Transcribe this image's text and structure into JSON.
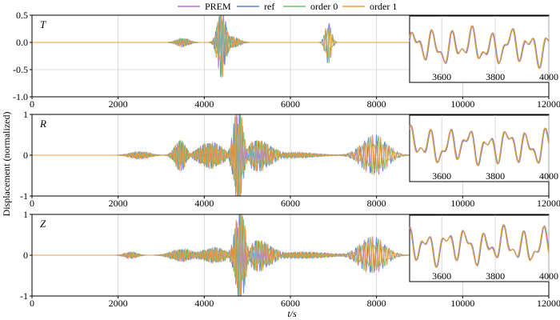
{
  "legend": [
    {
      "name": "PREM",
      "color": "#b06fd8"
    },
    {
      "name": "ref",
      "color": "#5a7fd6"
    },
    {
      "name": "order 0",
      "color": "#6cbf6c"
    },
    {
      "name": "order 1",
      "color": "#f39a3c"
    }
  ],
  "ylabel": "Displacement (normalized)",
  "xlabel": "t/s",
  "chart_data": [
    {
      "type": "line",
      "panel": "T",
      "xlim": [
        0,
        12000
      ],
      "ylim": [
        -1.0,
        0.5
      ],
      "xticks": [
        0,
        2000,
        4000,
        6000,
        8000,
        10000,
        12000
      ],
      "yticks": [
        -1.0,
        -0.5,
        0.0,
        0.5
      ],
      "ytick_labels": [
        "-1.0",
        "-0.5",
        "0.0",
        "0.5"
      ],
      "grid": true,
      "wave_packets": [
        {
          "t": 3500,
          "width": 200,
          "amp": 0.06,
          "period": 60
        },
        {
          "t": 4400,
          "width": 130,
          "amp": 0.5,
          "period": 75
        },
        {
          "t": 4650,
          "width": 220,
          "amp": 0.08,
          "period": 60
        },
        {
          "t": 6880,
          "width": 100,
          "amp": 0.3,
          "period": 80
        }
      ],
      "inset": {
        "xlim": [
          3480,
          4000
        ],
        "xticks": [
          3600,
          3800,
          4000
        ]
      }
    },
    {
      "type": "line",
      "panel": "R",
      "xlim": [
        0,
        12000
      ],
      "ylim": [
        -1,
        1
      ],
      "xticks": [
        0,
        2000,
        4000,
        6000,
        8000,
        10000,
        12000
      ],
      "yticks": [
        -1,
        0,
        1
      ],
      "ytick_labels": [
        "-1",
        "0",
        "1"
      ],
      "grid": true,
      "wave_packets": [
        {
          "t": 2500,
          "width": 300,
          "amp": 0.07,
          "period": 50
        },
        {
          "t": 3450,
          "width": 180,
          "amp": 0.3,
          "period": 60
        },
        {
          "t": 4150,
          "width": 380,
          "amp": 0.25,
          "period": 55
        },
        {
          "t": 4800,
          "width": 150,
          "amp": 0.95,
          "period": 65
        },
        {
          "t": 5250,
          "width": 400,
          "amp": 0.3,
          "period": 70
        },
        {
          "t": 6100,
          "width": 700,
          "amp": 0.05,
          "period": 50
        },
        {
          "t": 7950,
          "width": 400,
          "amp": 0.38,
          "period": 95
        }
      ],
      "inset": {
        "xlim": [
          3480,
          4000
        ],
        "xticks": [
          3600,
          3800,
          4000
        ]
      }
    },
    {
      "type": "line",
      "panel": "Z",
      "xlim": [
        0,
        12000
      ],
      "ylim": [
        -1,
        1
      ],
      "xticks": [
        0,
        2000,
        4000,
        6000,
        8000,
        10000,
        12000
      ],
      "yticks": [
        -1,
        0,
        1
      ],
      "ytick_labels": [
        "-1",
        "0",
        "1"
      ],
      "grid": true,
      "wave_packets": [
        {
          "t": 2300,
          "width": 200,
          "amp": 0.06,
          "period": 50
        },
        {
          "t": 3500,
          "width": 350,
          "amp": 0.12,
          "period": 60
        },
        {
          "t": 4250,
          "width": 350,
          "amp": 0.15,
          "period": 55
        },
        {
          "t": 4850,
          "width": 160,
          "amp": 0.95,
          "period": 65
        },
        {
          "t": 5250,
          "width": 400,
          "amp": 0.3,
          "period": 70
        },
        {
          "t": 6300,
          "width": 800,
          "amp": 0.06,
          "period": 50
        },
        {
          "t": 7900,
          "width": 400,
          "amp": 0.35,
          "period": 95
        }
      ],
      "inset": {
        "xlim": [
          3480,
          4000
        ],
        "xticks": [
          3600,
          3800,
          4000
        ]
      }
    }
  ]
}
